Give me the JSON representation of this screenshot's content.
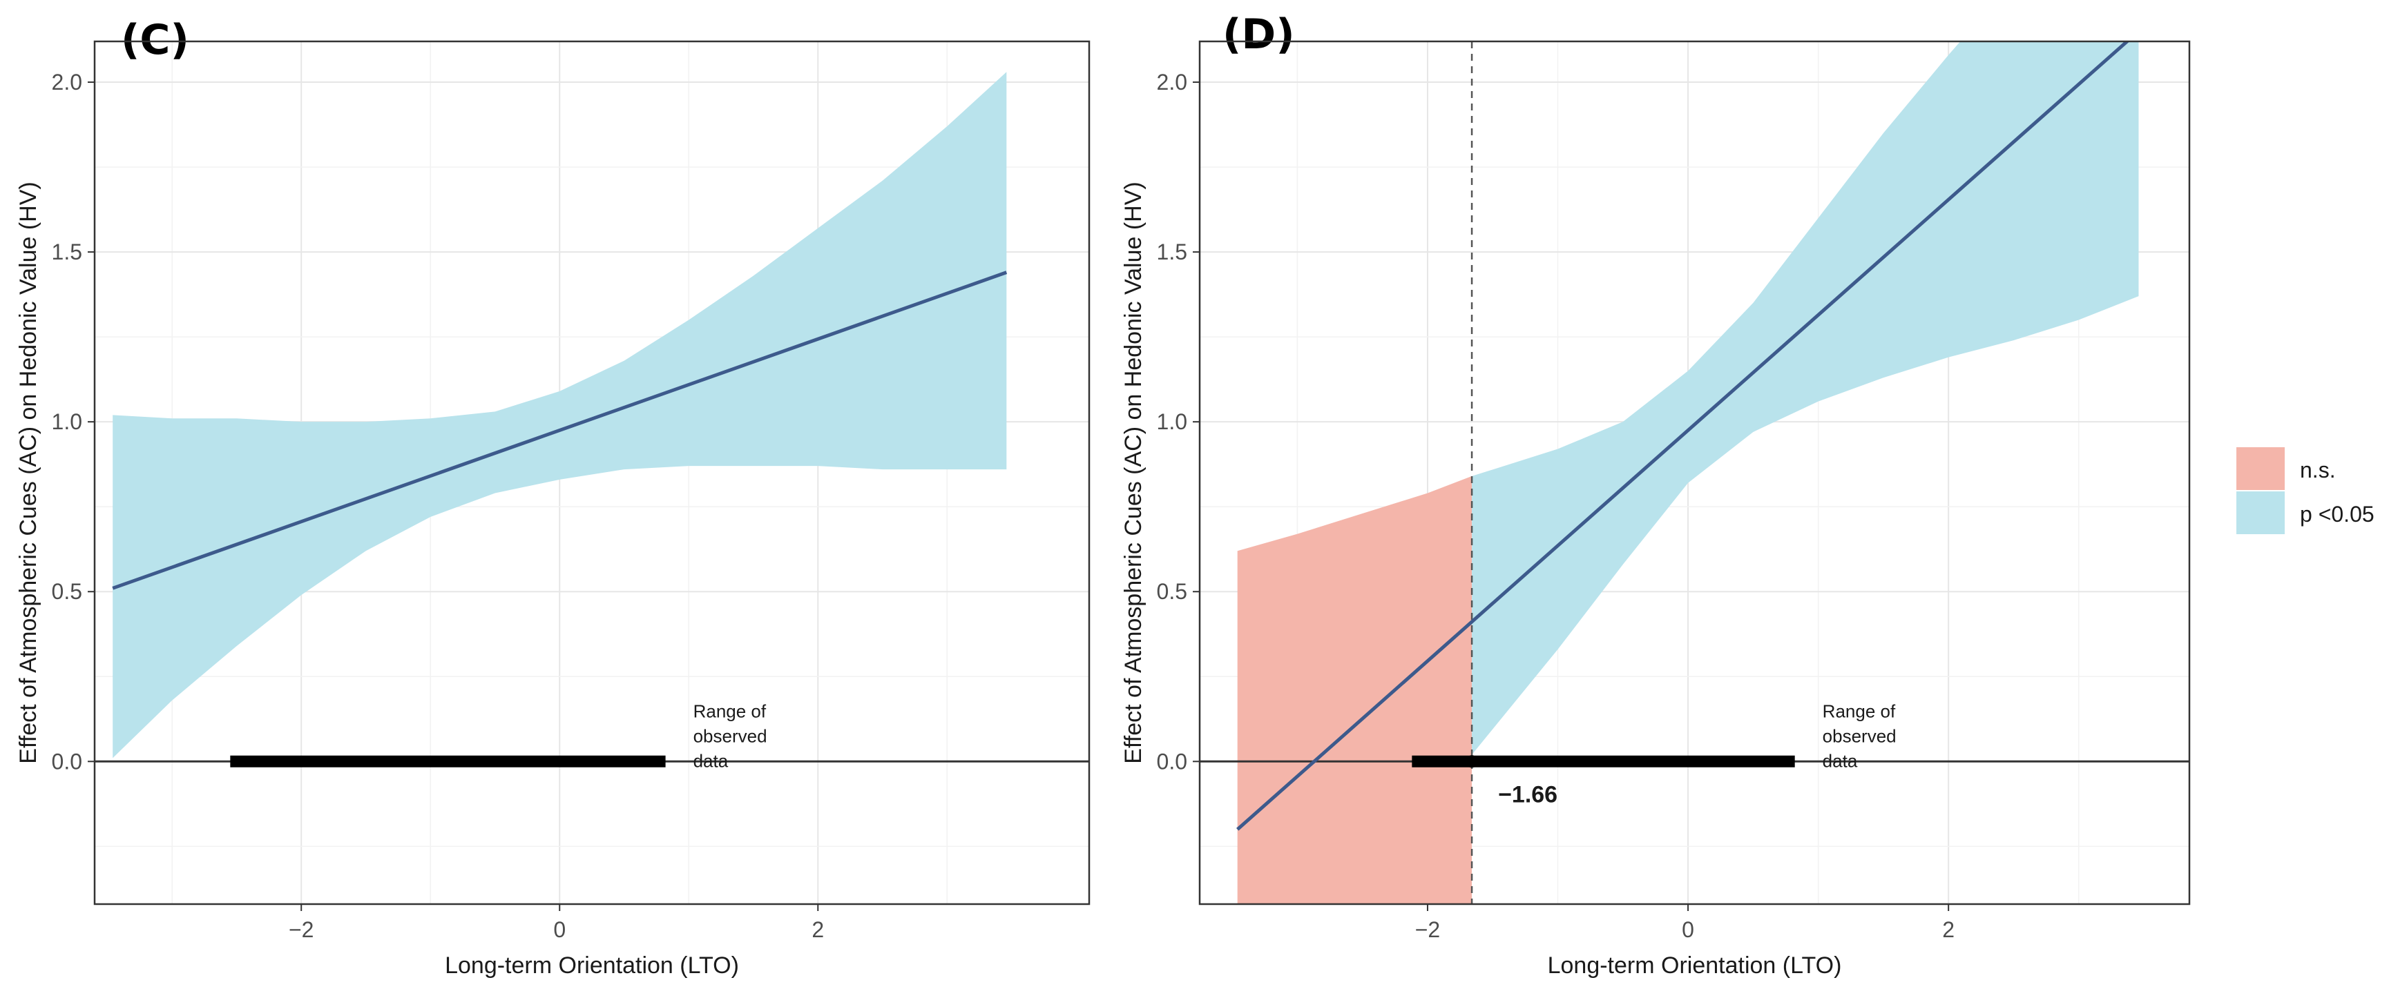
{
  "chart_data": [
    {
      "type": "area",
      "panel_label": "(C)",
      "xlabel": "Long-term Orientation (LTO)",
      "ylabel": "Effect of Atmospheric Cues (AC) on Hedonic Value (HV)",
      "xlim": [
        -3.6,
        4.1
      ],
      "ylim": [
        -0.42,
        2.12
      ],
      "xticks": [
        -2,
        0,
        2
      ],
      "xtick_labels": [
        "−2",
        "0",
        "2"
      ],
      "yticks": [
        0.0,
        0.5,
        1.0,
        1.5,
        2.0
      ],
      "ytick_labels": [
        "0.0",
        "0.5",
        "1.0",
        "1.5",
        "2.0"
      ],
      "grid": true,
      "zero_line": true,
      "series": [
        {
          "kind": "band",
          "color": "#b9e3ec",
          "x": [
            -3.46,
            -3.0,
            -2.5,
            -2.0,
            -1.5,
            -1.0,
            -0.5,
            0.0,
            0.5,
            1.0,
            1.5,
            2.0,
            2.5,
            3.0,
            3.46
          ],
          "lower": [
            0.01,
            0.18,
            0.34,
            0.49,
            0.62,
            0.72,
            0.79,
            0.83,
            0.86,
            0.87,
            0.87,
            0.87,
            0.86,
            0.86,
            0.86
          ],
          "upper": [
            1.02,
            1.01,
            1.01,
            1.0,
            1.0,
            1.01,
            1.03,
            1.09,
            1.18,
            1.3,
            1.43,
            1.57,
            1.71,
            1.87,
            2.03
          ]
        },
        {
          "kind": "line",
          "color": "#3d5a8c",
          "x": [
            -3.46,
            3.46
          ],
          "y": [
            0.51,
            1.44
          ]
        }
      ],
      "range_bar": {
        "x": [
          -2.55,
          0.82
        ],
        "label_lines": [
          "Range of",
          "observed",
          "data"
        ]
      }
    },
    {
      "type": "area",
      "panel_label": "(D)",
      "xlabel": "Long-term Orientation (LTO)",
      "ylabel": "Effect of Atmospheric Cues (AC) on Hedonic Value (HV)",
      "xlim": [
        -3.75,
        3.85
      ],
      "ylim": [
        -0.42,
        2.12
      ],
      "xticks": [
        -2,
        0,
        2
      ],
      "xtick_labels": [
        "−2",
        "0",
        "2"
      ],
      "yticks": [
        0.0,
        0.5,
        1.0,
        1.5,
        2.0
      ],
      "ytick_labels": [
        "0.0",
        "0.5",
        "1.0",
        "1.5",
        "2.0"
      ],
      "grid": true,
      "zero_line": true,
      "threshold": {
        "x": -1.66,
        "label": "−1.66"
      },
      "series": [
        {
          "kind": "band",
          "name": "n.s.",
          "color": "#f4b5aa",
          "x": [
            -3.46,
            -3.0,
            -2.5,
            -2.0,
            -1.66
          ],
          "lower": [
            -0.75,
            -0.7,
            -0.62,
            -0.52,
            -0.42
          ],
          "upper": [
            0.62,
            0.67,
            0.73,
            0.79,
            0.84
          ]
        },
        {
          "kind": "band",
          "name": "p <0.05",
          "color": "#b9e3ec",
          "x": [
            -1.66,
            -1.0,
            -0.5,
            0.0,
            0.5,
            1.0,
            1.5,
            2.0,
            2.5,
            3.0,
            3.46
          ],
          "lower": [
            0.02,
            0.33,
            0.58,
            0.82,
            0.97,
            1.06,
            1.13,
            1.19,
            1.24,
            1.3,
            1.37
          ],
          "upper": [
            0.84,
            0.92,
            1.0,
            1.15,
            1.35,
            1.6,
            1.85,
            2.08,
            2.3,
            2.5,
            2.68
          ]
        },
        {
          "kind": "line",
          "color": "#3d5a8c",
          "x": [
            -3.46,
            3.46
          ],
          "y": [
            -0.2,
            2.15
          ]
        }
      ],
      "range_bar": {
        "x": [
          -2.12,
          0.82
        ],
        "label_lines": [
          "Range of",
          "observed",
          "data"
        ]
      }
    }
  ],
  "legend": {
    "placement": "right",
    "items": [
      {
        "label": "n.s.",
        "color": "#f4b5aa"
      },
      {
        "label": "p <0.05",
        "color": "#b9e3ec"
      }
    ]
  }
}
